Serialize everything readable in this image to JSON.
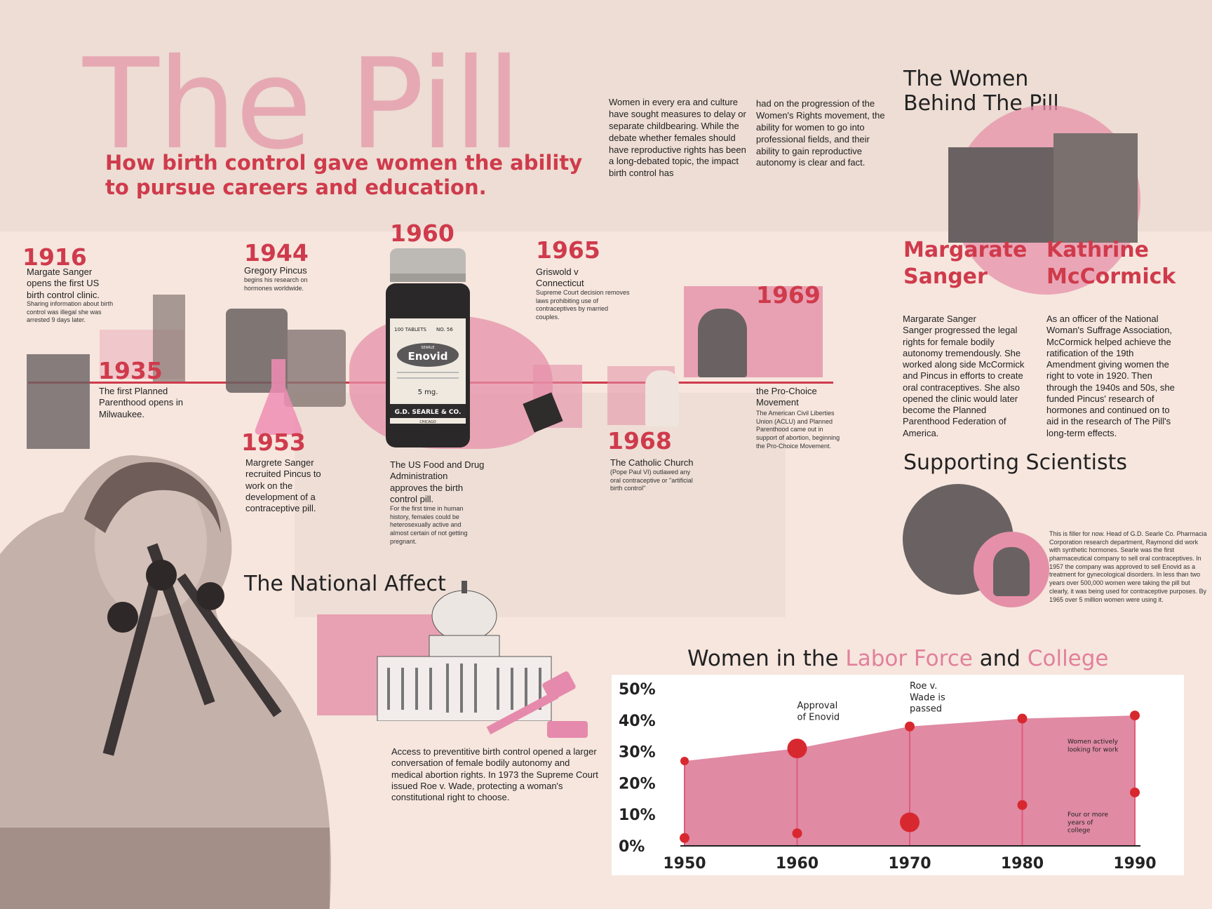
{
  "hero": {
    "title": "The Pill",
    "subtitle": "How birth control gave women the ability to pursue careers and education."
  },
  "intro": {
    "col1": " Women in every era and culture have sought measures to delay or separate childbearing. While the debate whether females should have reproductive rights has been a long-debated topic, the impact birth control has",
    "col2": "had on the progression of the Women's Rights movement, the ability for women to go into professional fields, and their ability to gain reproductive autonomy is clear and fact."
  },
  "timeline": {
    "e1916": {
      "year": "1916",
      "title": "Margate Sanger opens the first US birth control clinic.",
      "body": "Sharing information about birth control was illegal she was arrested 9 days later."
    },
    "e1935": {
      "year": "1935",
      "title": "The first Planned Parenthood opens in Milwaukee."
    },
    "e1944": {
      "year": "1944",
      "title": "Gregory Pincus",
      "body": "begins his research on hormones worldwide."
    },
    "e1953": {
      "year": "1953",
      "title": "Margrete Sanger recruited Pincus to work on the development of a contraceptive pill."
    },
    "e1960": {
      "year": "1960",
      "title": "The US Food and Drug Administration approves the birth control pill.",
      "body": "For the first time in human history, females could be heterosexually active and almost certain of not getting pregnant."
    },
    "e1965": {
      "year": "1965",
      "title": "Griswold v Connecticut",
      "body": "Supreme Court decision removes laws prohibiting use of contraceptives by married couples."
    },
    "e1968": {
      "year": "1968",
      "title": "The Catholic Church",
      "body": "(Pope Paul VI) outlawed any oral contraceptive or \"artificial birth control\""
    },
    "e1969": {
      "year": "1969",
      "title": "the Pro-Choice Movement",
      "body": "The American Civil Liberties Union (ACLU) and Planned Parenthood came out in support of abortion, beginning the Pro-Choice Movement."
    }
  },
  "bottle": {
    "count_label": "100 TABLETS",
    "number_label": "NO. 56",
    "searle_small": "SEARLE",
    "brand": "Enovid",
    "dose": "5 mg.",
    "maker": "G.D. SEARLE & CO.",
    "city": "CHICAGO"
  },
  "national": {
    "heading": "The National Affect",
    "body": "Access to preventitive birth control opened a larger conversation of female bodily autonomy and medical abortion rights. In 1973 the Supreme Court issued Roe v. Wade, protecting a woman's constitutional right to choose."
  },
  "women": {
    "heading": "The Women Behind The Pill",
    "sanger": {
      "name": "Margarate Sanger",
      "bio": "Margarate Sanger\nSanger progressed the legal rights for female bodily autonomy tremendously. She worked along side McCormick and Pincus in efforts to create oral contraceptives. She also opened the clinic would later become the Planned Parenthood Federation of America."
    },
    "mccormick": {
      "name": "Kathrine McCormick",
      "bio": "As an officer of the National Woman's Suffrage Association, McCormick helped achieve the ratification of the 19th Amendment giving women the right to vote in 1920. Then through the 1940s and 50s, she funded Pincus' research of hormones and continued on to aid in the research of The Pill's long-term effects."
    }
  },
  "scientists": {
    "heading": "Supporting Scientists",
    "body": "This is filler for now. Head of G.D. Searle Co. Pharmacia Corporation research department, Raymond did work with synthetic hormones. Searle was the first pharmaceutical company to sell oral contraceptives. In 1957 the company was approved to sell Enovid as a treatment for gynecological disorders. In less than two years over 500,000 women were taking the pill but clearly, it was being used for contraceptive purposes. By 1965 over 5 million women were using it."
  },
  "chart_title": {
    "part1": "Women in the ",
    "part2": "Labor Force",
    "part3": " and ",
    "part4": "College"
  },
  "chart_data": {
    "type": "area",
    "title": "Women in the Labor Force and College",
    "x_ticks": [
      "1950",
      "1960",
      "1970",
      "1980",
      "1990"
    ],
    "y_ticks": [
      "0%",
      "10%",
      "20%",
      "30%",
      "40%",
      "50%"
    ],
    "xlim": [
      1950,
      1990
    ],
    "ylim": [
      0,
      50
    ],
    "series": [
      {
        "name": "Women actively looking for work",
        "points": [
          [
            1950,
            27
          ],
          [
            1960,
            31
          ],
          [
            1970,
            38
          ],
          [
            1980,
            40.5
          ],
          [
            1990,
            41.5
          ]
        ]
      },
      {
        "name": "Four or more years of college",
        "points": [
          [
            1950,
            2.5
          ],
          [
            1960,
            4
          ],
          [
            1970,
            7.5
          ],
          [
            1980,
            13
          ],
          [
            1990,
            17
          ]
        ]
      }
    ],
    "annotations": [
      {
        "text": "Approval of Enovid",
        "x": 1960
      },
      {
        "text": "Roe v. Wade is passed",
        "x": 1970
      }
    ],
    "colors": {
      "area": "#e08aa4",
      "marker": "#d8282f",
      "line": "#e05b7a"
    }
  }
}
